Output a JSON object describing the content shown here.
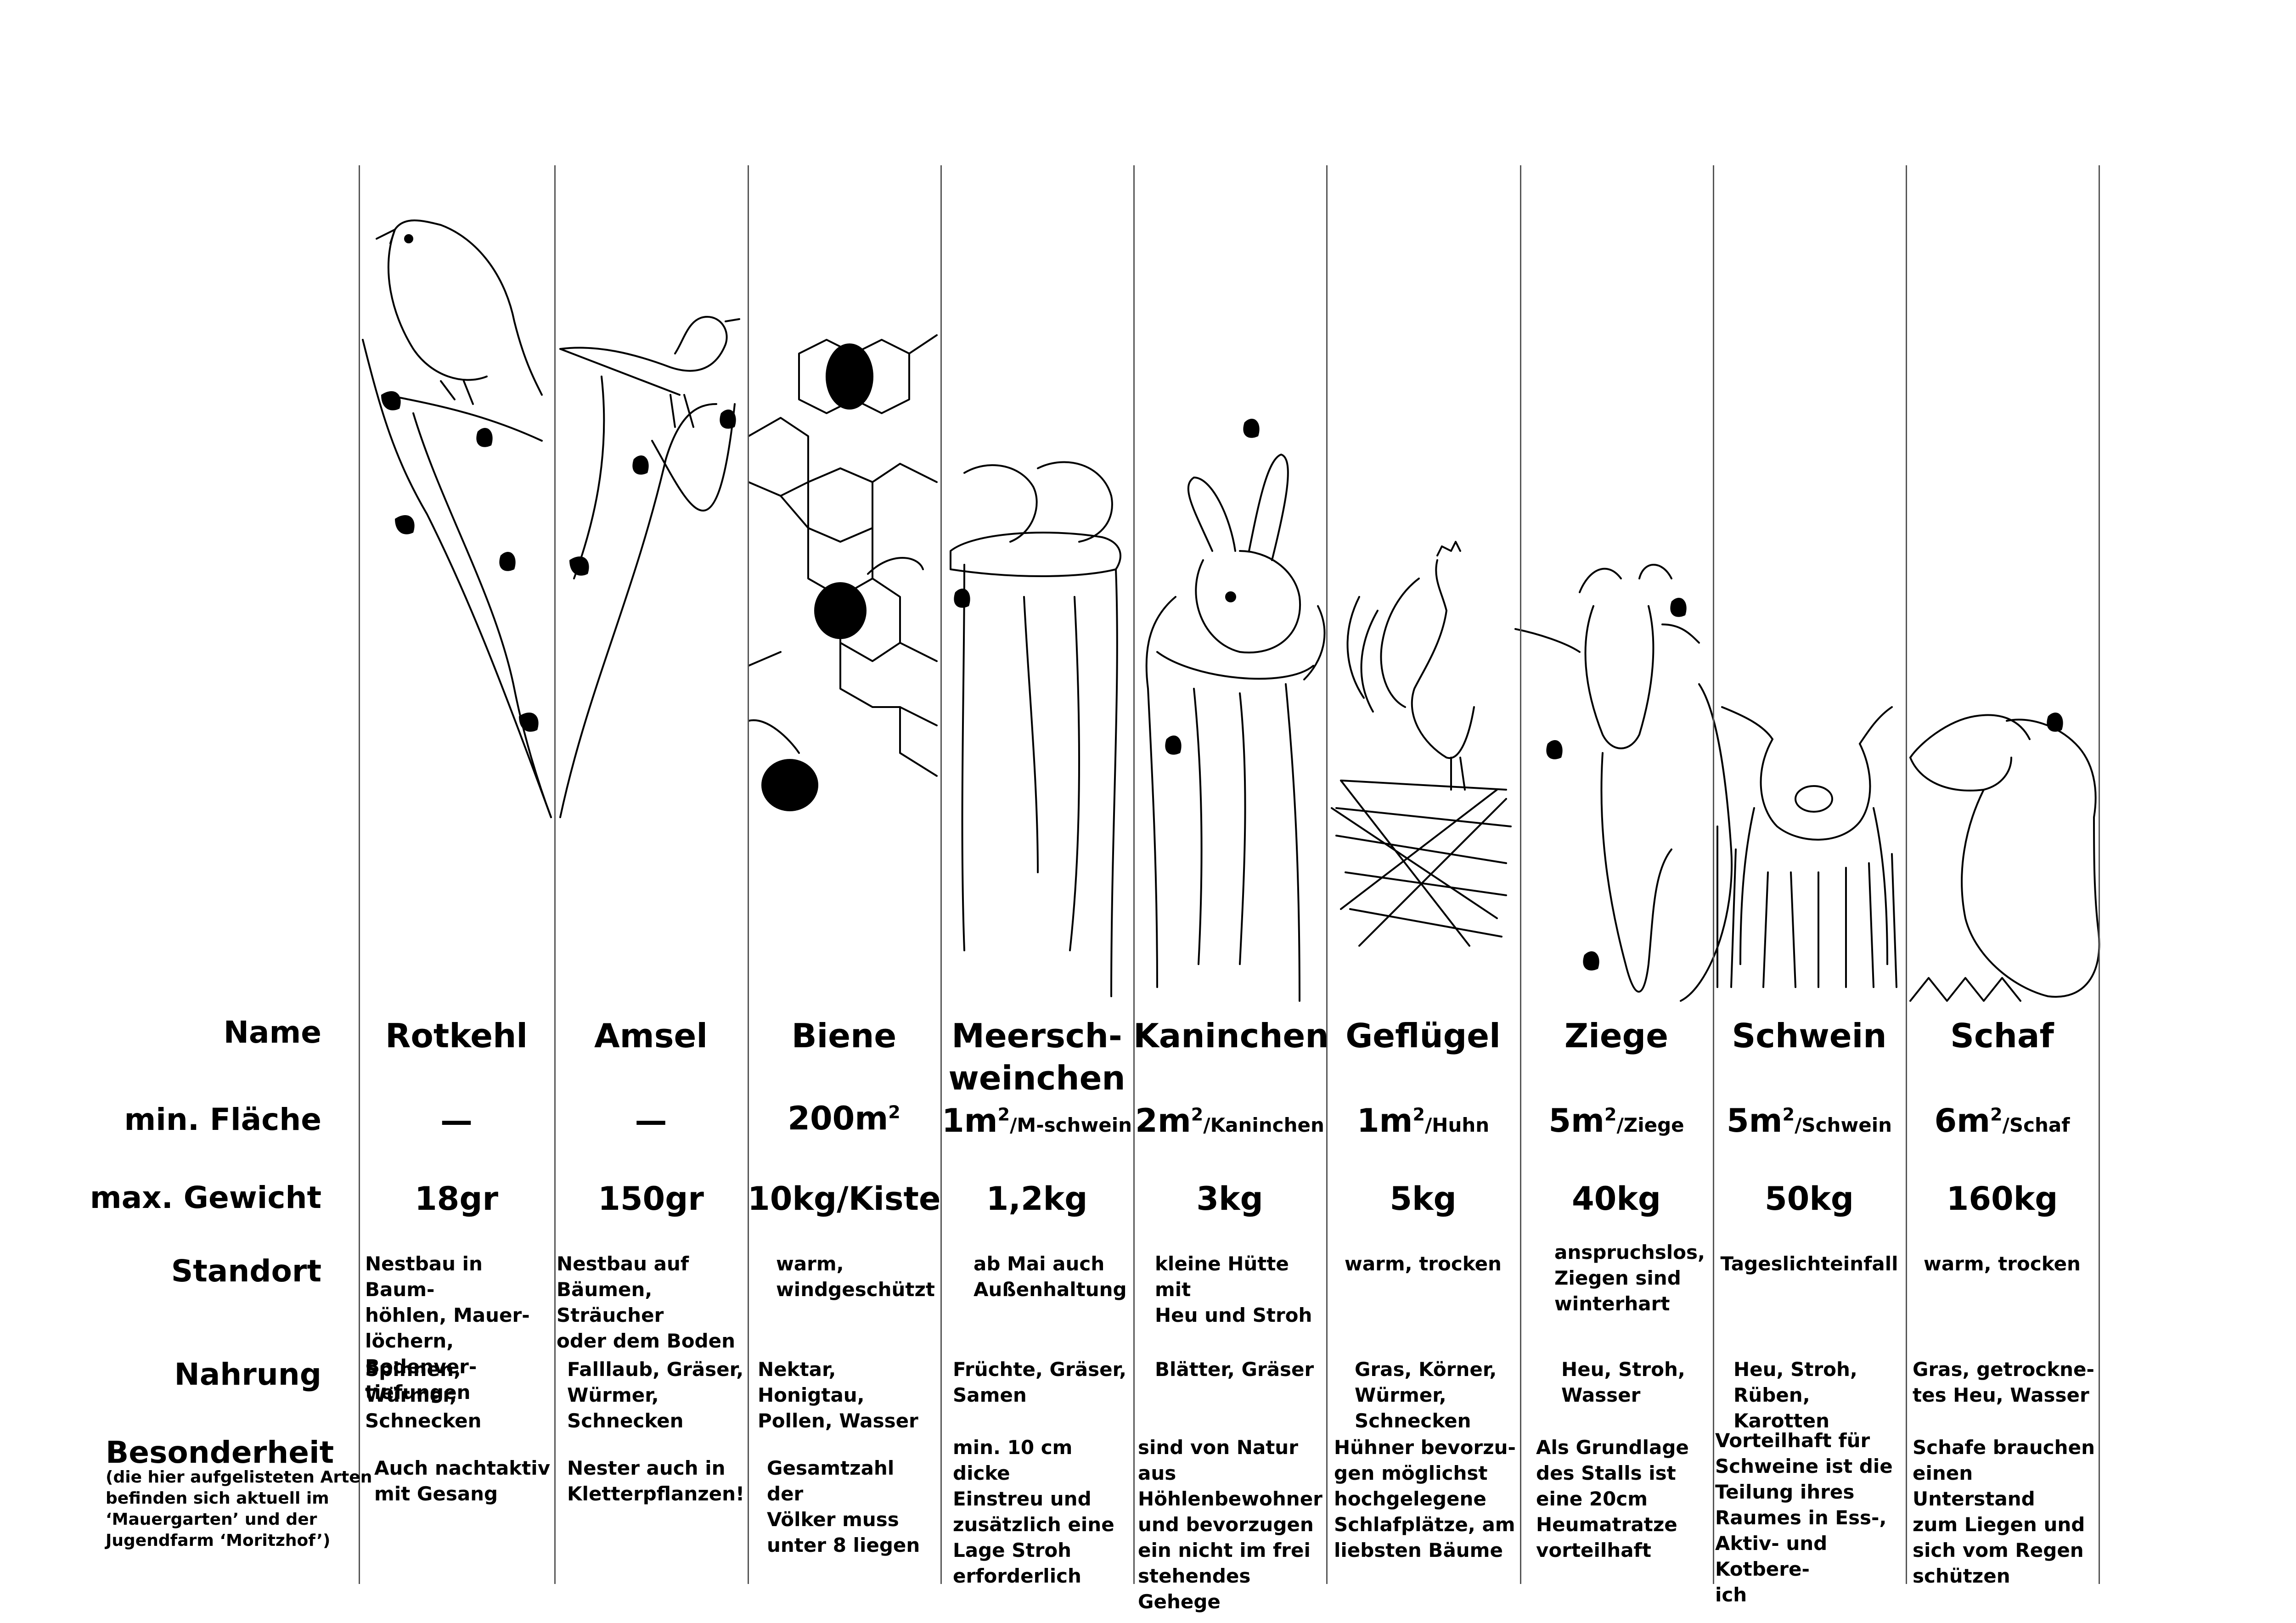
{
  "labels": {
    "name": "Name",
    "area": "min. Fläche",
    "weight": "max. Gewicht",
    "location": "Standort",
    "food": "Nahrung",
    "special": "Besonderheit",
    "special_note": "(die hier aufgelisteten Arten\nbefinden sich aktuell im\n‘Mauergarten’ und der\nJugendfarm ‘Moritzhof’)"
  },
  "animals": [
    {
      "name": "Rotkehl",
      "area_main": "—",
      "area_sup": "",
      "area_unit": "",
      "weight": "18gr",
      "location": "Nestbau in Baum-\nhöhlen, Mauer-\nlöchern, Bodenver-\ntiefungen",
      "food": "Spinnen, Würmer,\nSchnecken",
      "special": "Auch nachtaktiv\nmit Gesang",
      "icon": "robin-icon"
    },
    {
      "name": "Amsel",
      "area_main": "—",
      "area_sup": "",
      "area_unit": "",
      "weight": "150gr",
      "location": "Nestbau auf\nBäumen, Sträucher\noder dem Boden",
      "food": "Falllaub, Gräser,\nWürmer,\nSchnecken",
      "special": "Nester auch in\nKletterpflanzen!",
      "icon": "blackbird-icon"
    },
    {
      "name": "Biene",
      "area_main": "200m",
      "area_sup": "2",
      "area_unit": "",
      "weight": "10kg/Kiste",
      "location": "warm,\nwindgeschützt",
      "food": "Nektar, Honigtau,\nPollen, Wasser",
      "special": "Gesamtzahl der\nVölker muss\nunter 8 liegen",
      "icon": "bee-icon"
    },
    {
      "name": "Meersch-\nweinchen",
      "area_main": "1m",
      "area_sup": "2",
      "area_unit": "/M-schwein",
      "weight": "1,2kg",
      "location": "ab Mai auch\nAußenhaltung",
      "food": "Früchte, Gräser,\nSamen",
      "special": "min. 10 cm dicke\nEinstreu und\nzusätzlich eine\nLage Stroh\nerforderlich",
      "icon": "guinea-pig-icon"
    },
    {
      "name": "Kaninchen",
      "area_main": "2m",
      "area_sup": "2",
      "area_unit": "/Kaninchen",
      "weight": "3kg",
      "location": "kleine Hütte mit\nHeu und Stroh",
      "food": "Blätter, Gräser",
      "special": "sind von Natur aus\nHöhlenbewohner\nund bevorzugen\nein nicht im frei\nstehendes Gehege",
      "icon": "rabbit-icon"
    },
    {
      "name": "Geflügel",
      "area_main": "1m",
      "area_sup": "2",
      "area_unit": "/Huhn",
      "weight": "5kg",
      "location": "warm, trocken",
      "food": "Gras, Körner,\nWürmer,\nSchnecken",
      "special": "Hühner bevorzu-\ngen möglichst\nhochgelegene\nSchlafplätze, am\nliebsten Bäume",
      "icon": "rooster-icon"
    },
    {
      "name": "Ziege",
      "area_main": "5m",
      "area_sup": "2",
      "area_unit": "/Ziege",
      "weight": "40kg",
      "location": "anspruchslos,\nZiegen sind\nwinterhart",
      "food": "Heu, Stroh,\nWasser",
      "special": "Als Grundlage\ndes Stalls ist\neine 20cm\nHeumatratze\nvorteilhaft",
      "icon": "goat-icon"
    },
    {
      "name": "Schwein",
      "area_main": "5m",
      "area_sup": "2",
      "area_unit": "/Schwein",
      "weight": "50kg",
      "location": "Tageslichteinfall",
      "food": "Heu, Stroh,\nRüben, Karotten",
      "special": "Vorteilhaft für\nSchweine ist die\nTeilung ihres\nRaumes in Ess-,\nAktiv- und Kotbere-\nich",
      "icon": "pig-icon"
    },
    {
      "name": "Schaf",
      "area_main": "6m",
      "area_sup": "2",
      "area_unit": "/Schaf",
      "weight": "160kg",
      "location": "warm, trocken",
      "food": "Gras, getrockne-\ntes Heu, Wasser",
      "special": "Schafe brauchen\neinen Unterstand\nzum Liegen und\nsich vom Regen\nschützen",
      "icon": "sheep-icon"
    }
  ]
}
